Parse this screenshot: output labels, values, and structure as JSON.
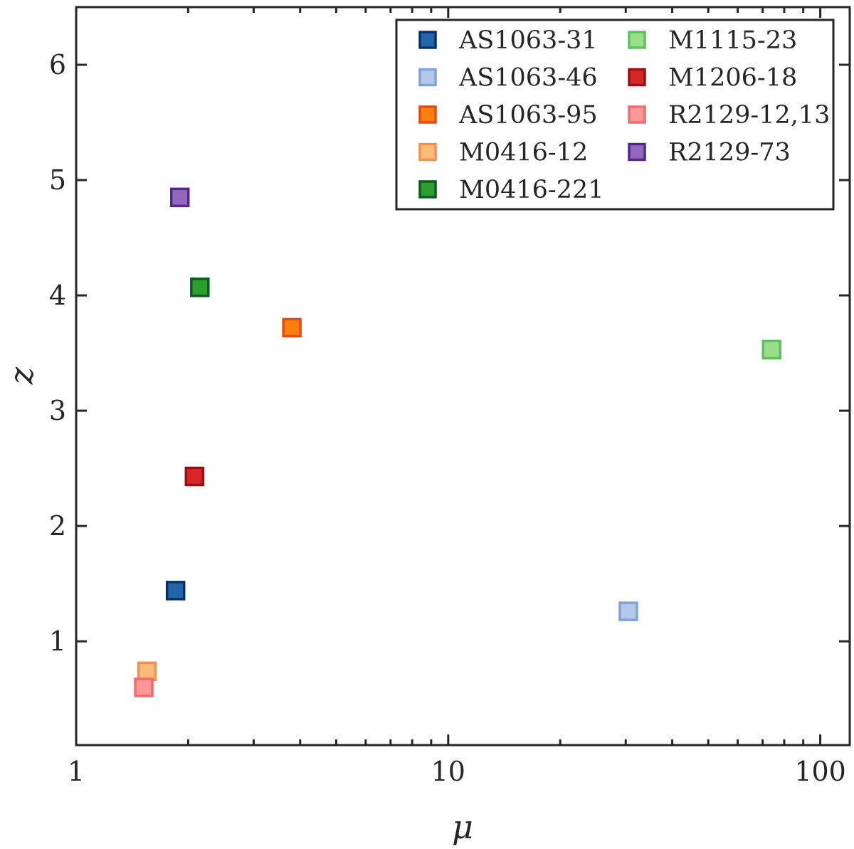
{
  "chart_data": {
    "type": "scatter",
    "xlabel": "μ",
    "ylabel": "z",
    "xscale": "log",
    "xlim": [
      1,
      120
    ],
    "ylim": [
      0.1,
      6.5
    ],
    "grid": false,
    "legend_position": "top-right",
    "x_ticks": [
      {
        "value": 1,
        "label": "1"
      },
      {
        "value": 10,
        "label": "10"
      },
      {
        "value": 100,
        "label": "100"
      }
    ],
    "y_ticks": [
      {
        "value": 1,
        "label": "1"
      },
      {
        "value": 2,
        "label": "2"
      },
      {
        "value": 3,
        "label": "3"
      },
      {
        "value": 4,
        "label": "4"
      },
      {
        "value": 5,
        "label": "5"
      },
      {
        "value": 6,
        "label": "6"
      }
    ],
    "series": [
      {
        "name": "AS1063-31",
        "fill": "#2166ac",
        "edge": "#08306b",
        "x": 1.85,
        "y": 1.44
      },
      {
        "name": "AS1063-46",
        "fill": "#b4c9e8",
        "edge": "#7fa3d6",
        "x": 30.5,
        "y": 1.26
      },
      {
        "name": "AS1063-95",
        "fill": "#ff7f0e",
        "edge": "#e8490f",
        "x": 3.8,
        "y": 3.72
      },
      {
        "name": "M0416-12",
        "fill": "#ffbb78",
        "edge": "#f5904a",
        "x": 1.55,
        "y": 0.74
      },
      {
        "name": "M0416-221",
        "fill": "#2ca02c",
        "edge": "#0b5d1e",
        "x": 2.15,
        "y": 4.07
      },
      {
        "name": "M1115-23",
        "fill": "#98df8a",
        "edge": "#5cc25c",
        "x": 74,
        "y": 3.53
      },
      {
        "name": "M1206-18",
        "fill": "#d62728",
        "edge": "#9c0d14",
        "x": 2.08,
        "y": 2.43
      },
      {
        "name": "R2129-12,13",
        "fill": "#ff9896",
        "edge": "#f06a70",
        "x": 1.52,
        "y": 0.6
      },
      {
        "name": "R2129-73",
        "fill": "#9467bd",
        "edge": "#54278f",
        "x": 1.9,
        "y": 4.85
      }
    ]
  }
}
